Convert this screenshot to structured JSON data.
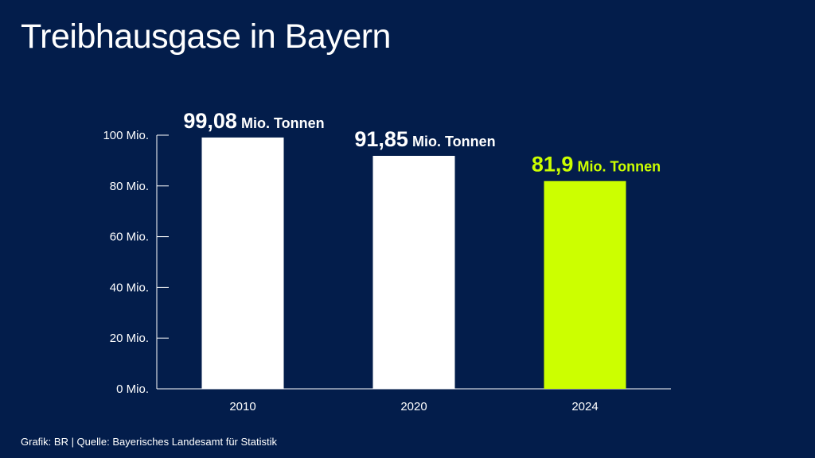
{
  "title": "Treibhausgase in Bayern",
  "footer": "Grafik: BR | Quelle: Bayerisches Landesamt für Statistik",
  "colors": {
    "background": "#031d4b",
    "bar": "#ffffff",
    "highlight": "#ccff00",
    "axis": "#ffffff"
  },
  "chart_data": {
    "type": "bar",
    "categories": [
      "2010",
      "2020",
      "2024"
    ],
    "values": [
      99.08,
      91.85,
      81.9
    ],
    "value_labels": [
      "99,08",
      "91,85",
      "81,9"
    ],
    "value_unit": "Mio. Tonnen",
    "highlight_index": 2,
    "ylim": [
      0,
      100
    ],
    "yticks": [
      0,
      20,
      40,
      60,
      80,
      100
    ],
    "ytick_labels": [
      "0 Mio.",
      "20 Mio.",
      "40 Mio.",
      "60 Mio.",
      "80 Mio.",
      "100 Mio."
    ],
    "xlabel": "",
    "ylabel": "",
    "grid": false
  }
}
